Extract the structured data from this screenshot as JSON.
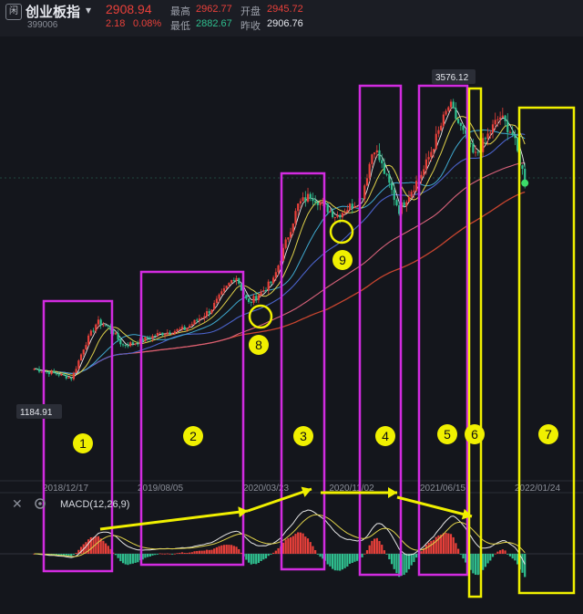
{
  "header": {
    "badge": "闲",
    "name": "创业板指",
    "code": "399006",
    "dropdown_glyph": "▾",
    "price": "2908.94",
    "change": "2.18",
    "change_pct": "0.08%",
    "high_label": "最高",
    "high": "2962.77",
    "open_label": "开盘",
    "open": "2945.72",
    "low_label": "最低",
    "low": "2882.67",
    "prev_label": "昨收",
    "prev": "2906.76"
  },
  "colors": {
    "up": "#e8403a",
    "down": "#2fbf8f",
    "magenta": "#d22be0",
    "yellow": "#f0f000",
    "bg": "#14161c"
  },
  "toolbar": {
    "close_icon": "close-icon",
    "settings_icon": "gear-icon"
  },
  "chart_data": [
    {
      "type": "candlestick",
      "x_ticks": [
        "2018/12/17",
        "2019/08/05",
        "2020/03/23",
        "2020/11/02",
        "2021/06/15",
        "2022/01/24"
      ],
      "price_min_label": "1184.91",
      "price_max_label": "3576.12",
      "close_path": [
        [
          "2018/10",
          1300
        ],
        [
          "2018/12",
          1250
        ],
        [
          "2019/01",
          1220
        ],
        [
          "2019/02",
          1500
        ],
        [
          "2019/03",
          1700
        ],
        [
          "2019/04",
          1650
        ],
        [
          "2019/05",
          1500
        ],
        [
          "2019/06",
          1520
        ],
        [
          "2019/08",
          1600
        ],
        [
          "2019/10",
          1640
        ],
        [
          "2019/12",
          1800
        ],
        [
          "2020/02",
          2100
        ],
        [
          "2020/03",
          1850
        ],
        [
          "2020/05",
          2050
        ],
        [
          "2020/07",
          2700
        ],
        [
          "2020/08",
          2780
        ],
        [
          "2020/10",
          2600
        ],
        [
          "2020/12",
          2750
        ],
        [
          "2021/01",
          3200
        ],
        [
          "2021/03",
          2650
        ],
        [
          "2021/05",
          3000
        ],
        [
          "2021/07",
          3550
        ],
        [
          "2021/09",
          3100
        ],
        [
          "2021/11",
          3450
        ],
        [
          "2021/12",
          3300
        ],
        [
          "2022/01",
          2908.94
        ]
      ]
    },
    {
      "type": "bar",
      "indicator": "MACD(12,26,9)",
      "label": "MACD(12,26,9)"
    }
  ],
  "annotations": {
    "box_labels": [
      "1",
      "2",
      "3",
      "4",
      "5",
      "6",
      "7"
    ],
    "circle_labels": [
      "8",
      "9"
    ]
  }
}
